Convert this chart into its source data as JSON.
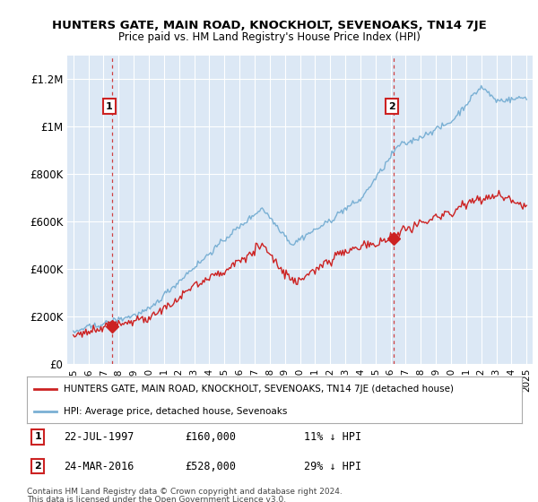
{
  "title": "HUNTERS GATE, MAIN ROAD, KNOCKHOLT, SEVENOAKS, TN14 7JE",
  "subtitle": "Price paid vs. HM Land Registry's House Price Index (HPI)",
  "sale1_date": "22-JUL-1997",
  "sale1_price": 160000,
  "sale1_label": "11% ↓ HPI",
  "sale2_date": "24-MAR-2016",
  "sale2_price": 528000,
  "sale2_label": "29% ↓ HPI",
  "legend_line1": "HUNTERS GATE, MAIN ROAD, KNOCKHOLT, SEVENOAKS, TN14 7JE (detached house)",
  "legend_line2": "HPI: Average price, detached house, Sevenoaks",
  "footnote1": "Contains HM Land Registry data © Crown copyright and database right 2024.",
  "footnote2": "This data is licensed under the Open Government Licence v3.0.",
  "hpi_color": "#7ab0d4",
  "sale_color": "#cc2222",
  "background_color": "#ffffff",
  "plot_bg_color": "#dce8f5",
  "grid_color": "#ffffff",
  "sale1_year": 1997.54,
  "sale2_year": 2016.21,
  "ylim": [
    0,
    1300000
  ],
  "yticks": [
    0,
    200000,
    400000,
    600000,
    800000,
    1000000,
    1200000
  ],
  "ytick_labels": [
    "£0",
    "£200K",
    "£400K",
    "£600K",
    "£800K",
    "£1M",
    "£1.2M"
  ],
  "x_start_year": 1995,
  "x_end_year": 2025
}
